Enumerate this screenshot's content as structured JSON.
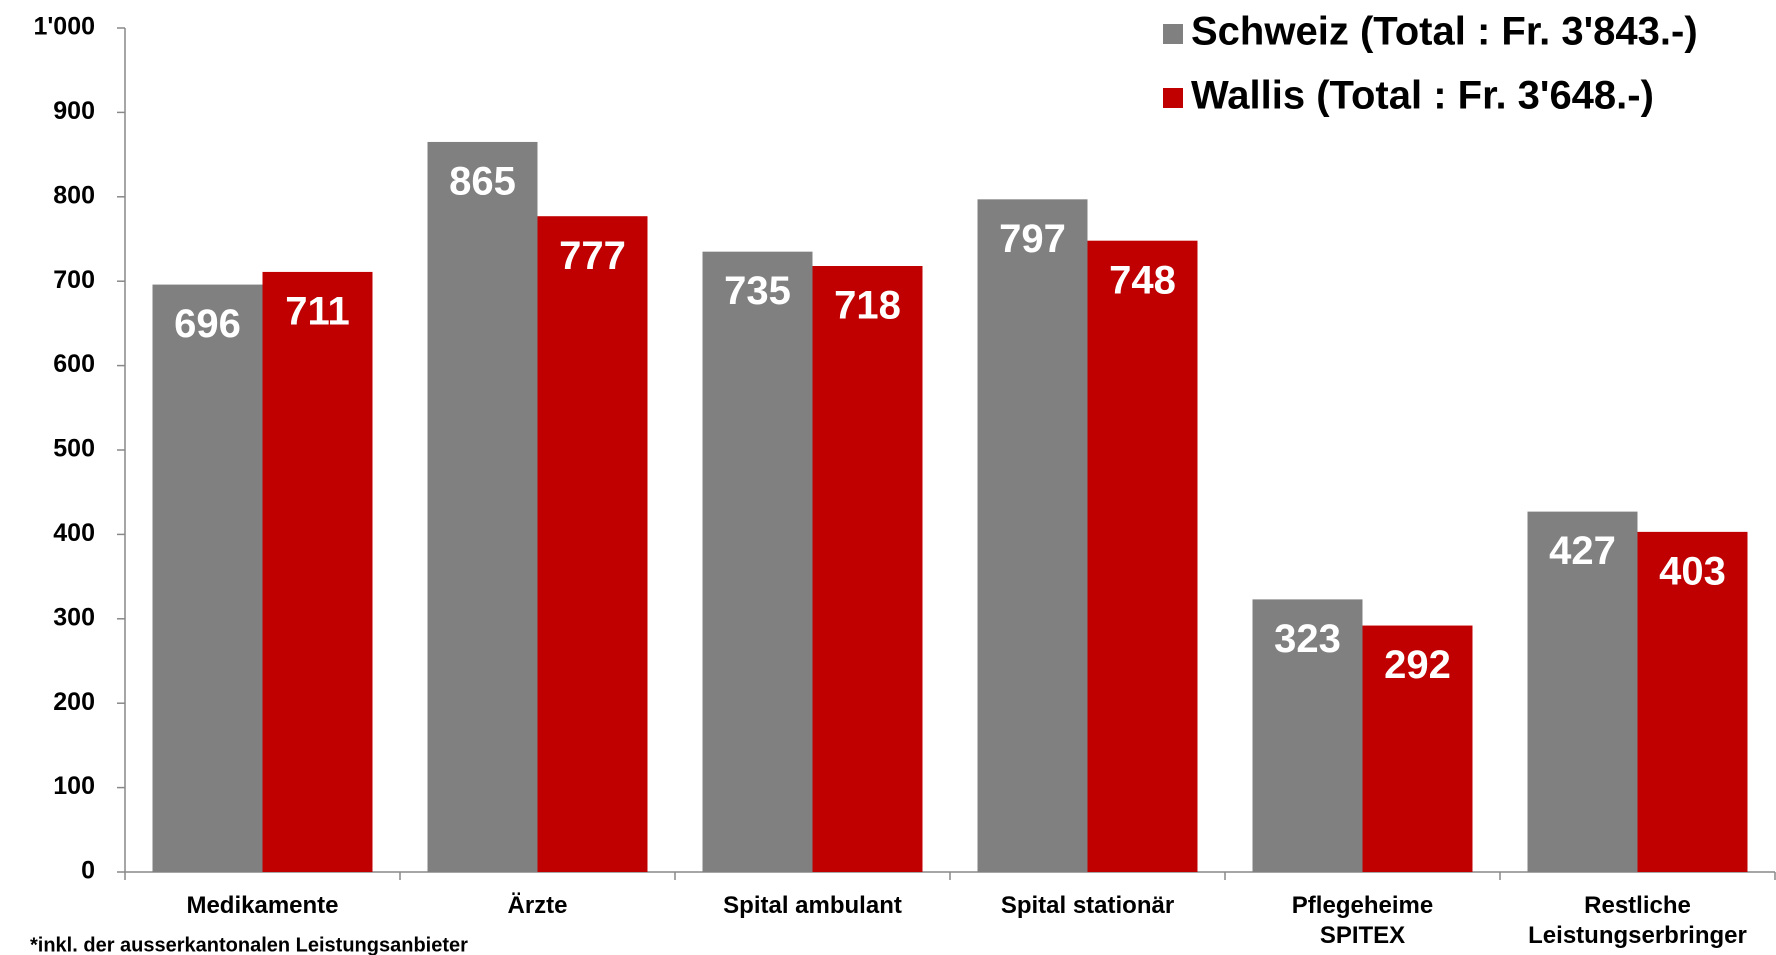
{
  "chart_data": {
    "type": "bar",
    "categories": [
      "Medikamente",
      "Ärzte",
      "Spital ambulant",
      "Spital stationär",
      "Pflegeheime\nSPITEX",
      "Restliche\nLeistungserbringer"
    ],
    "series": [
      {
        "name": "Schweiz (Total : Fr. 3'843.-)",
        "color": "#808080",
        "values": [
          696,
          865,
          735,
          797,
          323,
          427
        ]
      },
      {
        "name": "Wallis (Total : Fr. 3'648.-)",
        "color": "#c00000",
        "values": [
          711,
          777,
          718,
          748,
          292,
          403
        ]
      }
    ],
    "ylim": [
      0,
      1000
    ],
    "yticks": [
      0,
      100,
      200,
      300,
      400,
      500,
      600,
      700,
      800,
      900,
      {
        "value": 1000,
        "label": "1'000"
      }
    ],
    "legend": "upper right",
    "footnote": "*inkl. der ausserkantonalen Leistungsanbieter"
  }
}
